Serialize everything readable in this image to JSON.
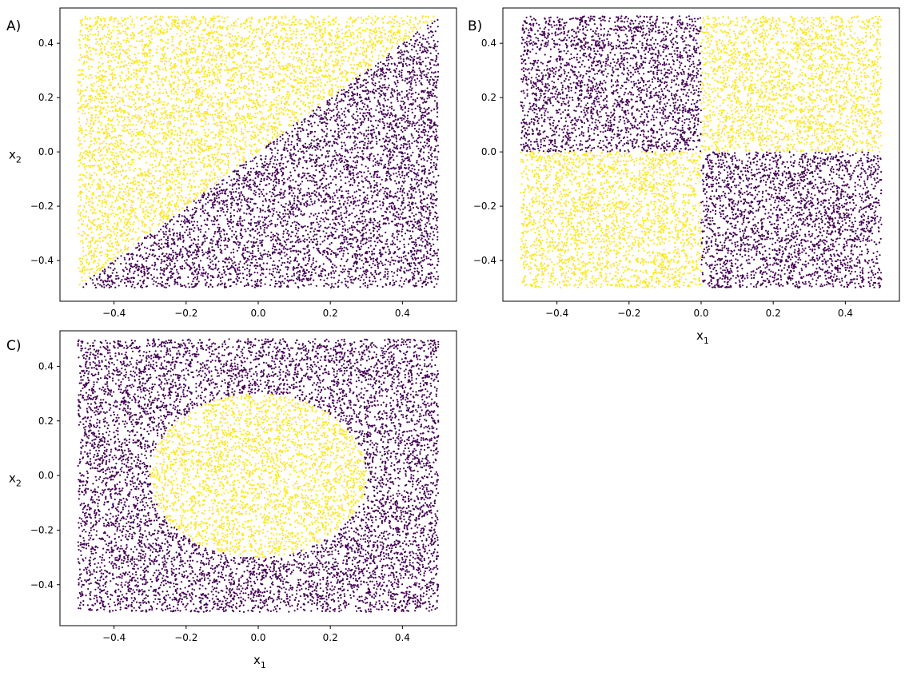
{
  "chart_data": [
    {
      "type": "scatter",
      "panel_label": "A)",
      "decision_rule": "yellow if x2 > x1, else purple",
      "xlim": [
        -0.55,
        0.55
      ],
      "ylim": [
        -0.55,
        0.53
      ],
      "xticks": [
        -0.4,
        -0.2,
        0.0,
        0.2,
        0.4
      ],
      "yticks": [
        -0.4,
        -0.2,
        0.0,
        0.2,
        0.4
      ],
      "xtick_labels": [
        "−0.4",
        "−0.2",
        "0.0",
        "0.2",
        "0.4"
      ],
      "ytick_labels": [
        "−0.4",
        "−0.2",
        "0.0",
        "0.2",
        "0.4"
      ],
      "xlabel": "",
      "ylabel": "x",
      "ylabel_sub": "2",
      "sample_range": [
        -0.5,
        0.5
      ],
      "point_count": 10000,
      "classes": [
        {
          "value": 1,
          "color": "#fde725"
        },
        {
          "value": 0,
          "color": "#440154"
        }
      ]
    },
    {
      "type": "scatter",
      "panel_label": "B)",
      "decision_rule": "yellow if x1 * x2 > 0 (XOR quadrants), else purple",
      "xlim": [
        -0.55,
        0.55
      ],
      "ylim": [
        -0.55,
        0.53
      ],
      "xticks": [
        -0.4,
        -0.2,
        0.0,
        0.2,
        0.4
      ],
      "yticks": [
        -0.4,
        -0.2,
        0.0,
        0.2,
        0.4
      ],
      "xtick_labels": [
        "−0.4",
        "−0.2",
        "0.0",
        "0.2",
        "0.4"
      ],
      "ytick_labels": [
        "−0.4",
        "−0.2",
        "0.0",
        "0.2",
        "0.4"
      ],
      "xlabel": "x",
      "xlabel_sub": "1",
      "ylabel": "",
      "sample_range": [
        -0.5,
        0.5
      ],
      "point_count": 10000,
      "classes": [
        {
          "value": 1,
          "color": "#fde725"
        },
        {
          "value": 0,
          "color": "#440154"
        }
      ]
    },
    {
      "type": "scatter",
      "panel_label": "C)",
      "decision_rule": "yellow if x1^2 + x2^2 < 0.3^2 (circle of radius 0.3), else purple",
      "circle_radius": 0.3,
      "xlim": [
        -0.55,
        0.55
      ],
      "ylim": [
        -0.55,
        0.53
      ],
      "xticks": [
        -0.4,
        -0.2,
        0.0,
        0.2,
        0.4
      ],
      "yticks": [
        -0.4,
        -0.2,
        0.0,
        0.2,
        0.4
      ],
      "xtick_labels": [
        "−0.4",
        "−0.2",
        "0.0",
        "0.2",
        "0.4"
      ],
      "ytick_labels": [
        "−0.4",
        "−0.2",
        "0.0",
        "0.2",
        "0.4"
      ],
      "xlabel": "x",
      "xlabel_sub": "1",
      "ylabel": "x",
      "ylabel_sub": "2",
      "sample_range": [
        -0.5,
        0.5
      ],
      "point_count": 10000,
      "classes": [
        {
          "value": 1,
          "color": "#fde725"
        },
        {
          "value": 0,
          "color": "#440154"
        }
      ]
    }
  ]
}
